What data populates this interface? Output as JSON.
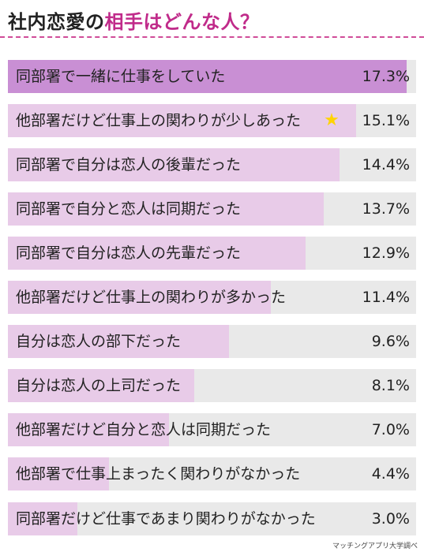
{
  "title": {
    "main": "社内恋愛の",
    "accent": "相手はどんな人？"
  },
  "icons": {
    "highlight": "star-icon"
  },
  "colors": {
    "accent": "#c02b8a",
    "top_bar": "#c98fd4",
    "bar": "#e8cbe8",
    "track": "#e9e9e9",
    "star": "#ffd400"
  },
  "source": "マッチングアプリ大学調べ",
  "chart_data": {
    "type": "bar",
    "orientation": "horizontal",
    "title": "社内恋愛の相手はどんな人？",
    "categories": [
      "同部署で一緒に仕事をしていた",
      "他部署だけど仕事上の関わりが少しあった",
      "同部署で自分は恋人の後輩だった",
      "同部署で自分と恋人は同期だった",
      "同部署で自分は恋人の先輩だった",
      "他部署だけど仕事上の関わりが多かった",
      "自分は恋人の部下だった",
      "自分は恋人の上司だった",
      "他部署だけど自分と恋人は同期だった",
      "他部署で仕事上まったく関わりがなかった",
      "同部署だけど仕事であまり関わりがなかった"
    ],
    "values": [
      17.3,
      15.1,
      14.4,
      13.7,
      12.9,
      11.4,
      9.6,
      8.1,
      7.0,
      4.4,
      3.0
    ],
    "value_labels": [
      "17.3%",
      "15.1%",
      "14.4%",
      "13.7%",
      "12.9%",
      "11.4%",
      "9.6%",
      "8.1%",
      "7.0%",
      "4.4%",
      "3.0%"
    ],
    "xlim": [
      0,
      20
    ],
    "unit": "%",
    "highlighted_index": 1
  }
}
